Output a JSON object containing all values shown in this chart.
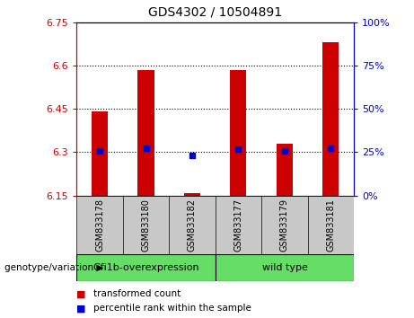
{
  "title": "GDS4302 / 10504891",
  "samples": [
    "GSM833178",
    "GSM833180",
    "GSM833182",
    "GSM833177",
    "GSM833179",
    "GSM833181"
  ],
  "bar_values": [
    6.44,
    6.585,
    6.158,
    6.585,
    6.33,
    6.68
  ],
  "bar_bottom": 6.15,
  "percentile_values": [
    6.305,
    6.315,
    6.29,
    6.31,
    6.305,
    6.315
  ],
  "ylim": [
    6.15,
    6.75
  ],
  "yticks_left": [
    6.15,
    6.3,
    6.45,
    6.6,
    6.75
  ],
  "yticks_right": [
    0,
    25,
    50,
    75,
    100
  ],
  "gridlines": [
    6.3,
    6.45,
    6.6
  ],
  "bar_color": "#cc0000",
  "dot_color": "#0000cc",
  "legend_items": [
    {
      "color": "#cc0000",
      "label": "transformed count"
    },
    {
      "color": "#0000cc",
      "label": "percentile rank within the sample"
    }
  ],
  "tick_color_left": "#cc0000",
  "tick_color_right": "#0000cc",
  "bg_plot": "#ffffff",
  "bg_xtick": "#c8c8c8",
  "bg_group": "#66dd66",
  "group1_label": "Gfi1b-overexpression",
  "group2_label": "wild type",
  "genotype_label": "genotype/variation"
}
